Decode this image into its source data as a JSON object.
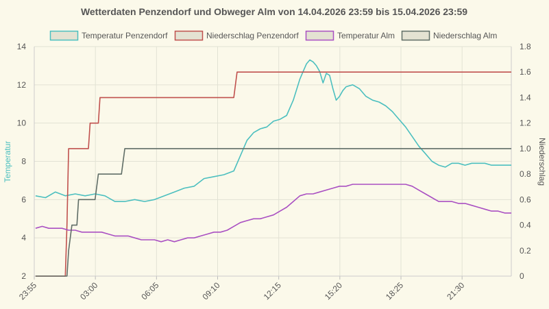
{
  "chart_data": {
    "type": "line",
    "title": "Wetterdaten Penzendorf und Obweger Alm von 14.04.2026 23:59 bis 15.04.2026 23:59",
    "y_left_label": "Temperatur",
    "y_right_label": "Niederschlag",
    "x_tick_labels": [
      "23:55",
      "03:00",
      "06:05",
      "09:10",
      "12:15",
      "15:20",
      "18:25",
      "21:30"
    ],
    "x_tick_minutes": [
      -4,
      181,
      366,
      551,
      736,
      921,
      1106,
      1291
    ],
    "x_range_minutes": [
      -4,
      1440
    ],
    "y_left_range": [
      2,
      14
    ],
    "y_left_ticks": [
      "2",
      "4",
      "6",
      "8",
      "10",
      "12",
      "14"
    ],
    "y_right_range": [
      0,
      1.8
    ],
    "y_right_ticks": [
      "0",
      "0.2",
      "0.4",
      "0.6",
      "0.8",
      "1.0",
      "1.2",
      "1.4",
      "1.6",
      "1.8"
    ],
    "grid": true,
    "legend_position": "top",
    "colors": {
      "background": "#fbf9ea",
      "grid": "#e2e2d4",
      "text": "#555555",
      "temp_penzendorf": "#4bbfbf",
      "rain_penzendorf": "#c0504d",
      "temp_alm": "#a94fc2",
      "rain_alm": "#5f6d66",
      "legend_fill": "#e4e2d2"
    },
    "series": [
      {
        "name": "Temperatur Penzendorf",
        "axis": "left",
        "color": "#4bbfbf",
        "x_minutes": [
          0,
          30,
          60,
          90,
          120,
          150,
          180,
          210,
          240,
          270,
          300,
          330,
          360,
          390,
          420,
          450,
          480,
          510,
          540,
          570,
          600,
          620,
          640,
          660,
          680,
          700,
          720,
          740,
          760,
          780,
          800,
          810,
          820,
          830,
          840,
          850,
          860,
          870,
          880,
          890,
          900,
          910,
          920,
          930,
          940,
          960,
          980,
          1000,
          1020,
          1040,
          1060,
          1080,
          1100,
          1120,
          1140,
          1160,
          1180,
          1200,
          1220,
          1240,
          1260,
          1280,
          1300,
          1320,
          1340,
          1360,
          1380,
          1400,
          1420,
          1440
        ],
        "values": [
          6.2,
          6.1,
          6.4,
          6.2,
          6.3,
          6.2,
          6.3,
          6.2,
          5.9,
          5.9,
          6.0,
          5.9,
          6.0,
          6.2,
          6.4,
          6.6,
          6.7,
          7.1,
          7.2,
          7.3,
          7.5,
          8.3,
          9.1,
          9.5,
          9.7,
          9.8,
          10.1,
          10.2,
          10.4,
          11.2,
          12.3,
          12.7,
          13.1,
          13.3,
          13.2,
          13.0,
          12.7,
          12.1,
          12.6,
          12.5,
          11.8,
          11.2,
          11.4,
          11.7,
          11.9,
          12.0,
          11.8,
          11.4,
          11.2,
          11.1,
          10.9,
          10.6,
          10.2,
          9.8,
          9.3,
          8.8,
          8.4,
          8.0,
          7.8,
          7.7,
          7.9,
          7.9,
          7.8,
          7.9,
          7.9,
          7.9,
          7.8,
          7.8,
          7.8,
          7.8
        ]
      },
      {
        "name": "Niederschlag Penzendorf",
        "axis": "right",
        "color": "#c0504d",
        "x_minutes": [
          0,
          80,
          90,
          95,
          100,
          110,
          130,
          160,
          165,
          180,
          190,
          195,
          200,
          560,
          580,
          590,
          600,
          610,
          1440
        ],
        "values": [
          0,
          0,
          0,
          0.4,
          1.0,
          1.0,
          1.0,
          1.0,
          1.2,
          1.2,
          1.2,
          1.4,
          1.4,
          1.4,
          1.4,
          1.4,
          1.4,
          1.6,
          1.6
        ]
      },
      {
        "name": "Temperatur Alm",
        "axis": "left",
        "color": "#a94fc2",
        "x_minutes": [
          0,
          20,
          40,
          60,
          80,
          100,
          120,
          140,
          160,
          180,
          200,
          220,
          240,
          260,
          280,
          300,
          320,
          340,
          360,
          380,
          400,
          420,
          440,
          460,
          480,
          500,
          520,
          540,
          560,
          580,
          600,
          620,
          640,
          660,
          680,
          700,
          720,
          740,
          760,
          780,
          800,
          820,
          840,
          860,
          880,
          900,
          920,
          940,
          960,
          980,
          1000,
          1020,
          1040,
          1060,
          1080,
          1100,
          1120,
          1140,
          1160,
          1180,
          1200,
          1220,
          1240,
          1260,
          1280,
          1300,
          1320,
          1340,
          1360,
          1380,
          1400,
          1420,
          1440
        ],
        "values": [
          4.5,
          4.6,
          4.5,
          4.5,
          4.5,
          4.4,
          4.4,
          4.3,
          4.3,
          4.3,
          4.3,
          4.2,
          4.1,
          4.1,
          4.1,
          4.0,
          3.9,
          3.9,
          3.9,
          3.8,
          3.9,
          3.8,
          3.9,
          4.0,
          4.0,
          4.1,
          4.2,
          4.3,
          4.3,
          4.4,
          4.6,
          4.8,
          4.9,
          5.0,
          5.0,
          5.1,
          5.2,
          5.4,
          5.6,
          5.9,
          6.2,
          6.3,
          6.3,
          6.4,
          6.5,
          6.6,
          6.7,
          6.7,
          6.8,
          6.8,
          6.8,
          6.8,
          6.8,
          6.8,
          6.8,
          6.8,
          6.8,
          6.7,
          6.5,
          6.3,
          6.1,
          5.9,
          5.9,
          5.9,
          5.8,
          5.8,
          5.7,
          5.6,
          5.5,
          5.4,
          5.4,
          5.3,
          5.3
        ]
      },
      {
        "name": "Niederschlag Alm",
        "axis": "right",
        "color": "#5f6d66",
        "x_minutes": [
          0,
          95,
          100,
          110,
          125,
          130,
          180,
          190,
          200,
          240,
          260,
          270,
          1440
        ],
        "values": [
          0,
          0,
          0.2,
          0.4,
          0.4,
          0.6,
          0.6,
          0.8,
          0.8,
          0.8,
          0.8,
          1.0,
          1.0
        ]
      }
    ]
  }
}
